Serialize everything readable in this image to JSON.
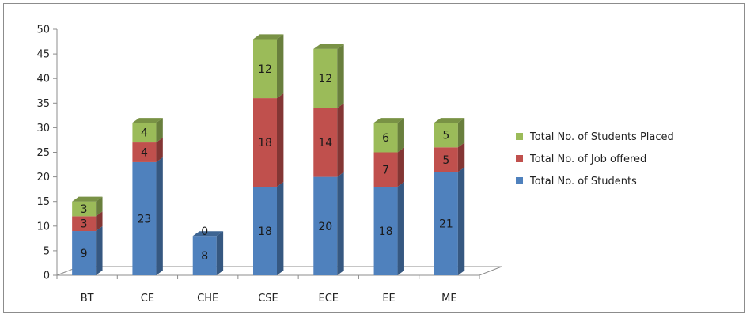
{
  "chart_data": {
    "type": "bar",
    "stacked": true,
    "style": "3d-column",
    "categories": [
      "BT",
      "CE",
      "CHE",
      "CSE",
      "ECE",
      "EE",
      "ME"
    ],
    "series": [
      {
        "name": "Total No. of Students",
        "values": [
          9,
          23,
          8,
          18,
          20,
          18,
          21
        ],
        "color": "#4f81bd"
      },
      {
        "name": "Total No. of Job offered",
        "values": [
          3,
          4,
          0,
          18,
          14,
          7,
          5
        ],
        "color": "#c0504d"
      },
      {
        "name": "Total No. of Students Placed",
        "values": [
          3,
          4,
          0,
          12,
          12,
          6,
          5
        ],
        "color": "#9bbb59"
      }
    ],
    "data_label_overrides": {
      "2": {
        "1": "0",
        "2": ""
      }
    },
    "ylim": [
      0,
      50
    ],
    "yticks": [
      0,
      5,
      10,
      15,
      20,
      25,
      30,
      35,
      40,
      45,
      50
    ],
    "title": "",
    "xlabel": "",
    "ylabel": "",
    "grid": false,
    "legend_position": "right"
  }
}
